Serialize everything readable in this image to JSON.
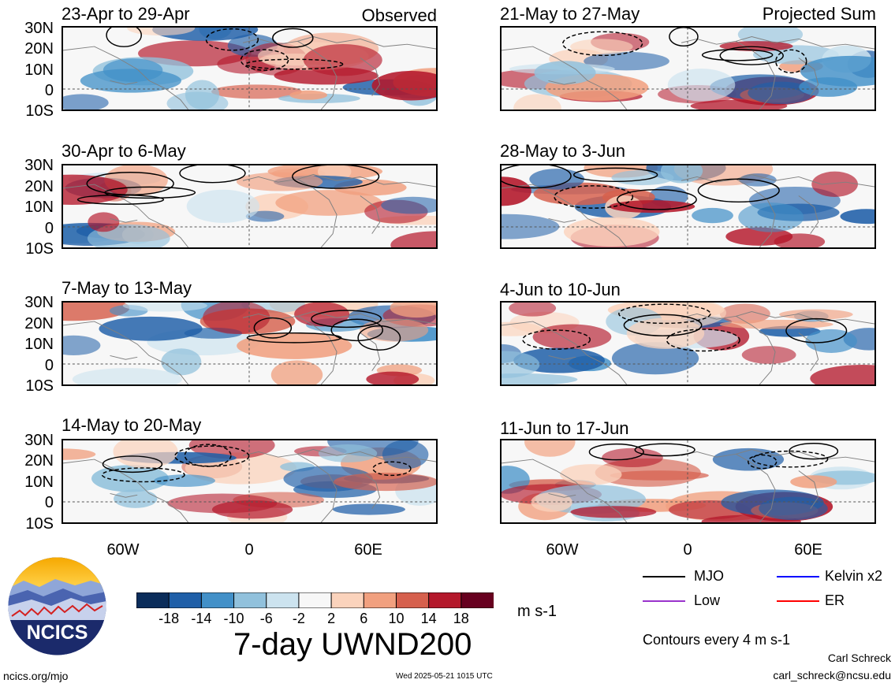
{
  "panels_left": [
    {
      "title": "23-Apr to 29-Apr",
      "tag": "Observed"
    },
    {
      "title": "30-Apr to 6-May",
      "tag": ""
    },
    {
      "title": "7-May to 13-May",
      "tag": ""
    },
    {
      "title": "14-May to 20-May",
      "tag": ""
    }
  ],
  "panels_right": [
    {
      "title": "21-May to 27-May",
      "tag": "Projected Sum"
    },
    {
      "title": "28-May to 3-Jun",
      "tag": ""
    },
    {
      "title": "4-Jun to 10-Jun",
      "tag": ""
    },
    {
      "title": "11-Jun to 17-Jun",
      "tag": ""
    }
  ],
  "lat_labels": [
    "30N",
    "20N",
    "10N",
    "0",
    "10S"
  ],
  "lon_labels": [
    "60W",
    "0",
    "60E"
  ],
  "colorbar": {
    "labels": [
      "-18",
      "-14",
      "-10",
      "-6",
      "-2",
      "2",
      "6",
      "10",
      "14",
      "18"
    ],
    "colors": [
      "#0b2d5b",
      "#1f5fa8",
      "#4290c8",
      "#91c1dc",
      "#cce3ef",
      "#f7f7f7",
      "#fbd3bc",
      "#f1a07f",
      "#d6604d",
      "#b4182b",
      "#67001f"
    ],
    "units": "m s-1"
  },
  "title": "7-day UWND200",
  "legend": {
    "mjo": "MJO",
    "kelvin": "Kelvin x2",
    "low": "Low",
    "er": "ER",
    "mjo_color": "#000000",
    "kelvin_color": "#0000ff",
    "low_color": "#9933cc",
    "er_color": "#ff0000"
  },
  "contours_note": "Contours every 4 m s-1",
  "logo_text": "NCICS",
  "footer": {
    "url": "ncics.org/mjo",
    "timestamp": "Wed 2025-05-21 1015 UTC",
    "author": "Carl Schreck",
    "email": "carl_schreck@ncsu.edu"
  }
}
